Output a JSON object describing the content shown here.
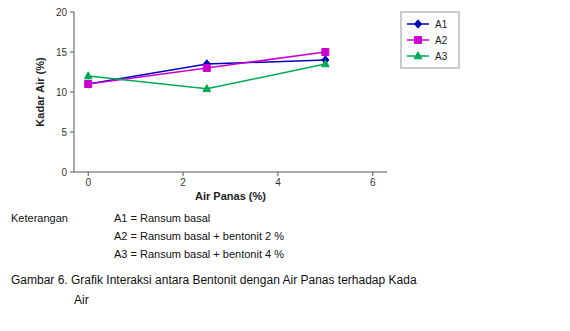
{
  "chart_data": {
    "type": "line",
    "x": [
      0,
      2.5,
      5
    ],
    "series": [
      {
        "name": "A1",
        "color": "#0000BB",
        "marker": "diamond",
        "values": [
          11.0,
          13.5,
          14.0
        ]
      },
      {
        "name": "A2",
        "color": "#CC00CC",
        "marker": "square",
        "values": [
          11.0,
          13.0,
          15.0
        ]
      },
      {
        "name": "A3",
        "color": "#00AA55",
        "marker": "triangle",
        "values": [
          12.0,
          10.4,
          13.5
        ]
      }
    ],
    "xlabel": "Air Panas (%)",
    "ylabel": "Kadar Air (%)",
    "xlim": [
      -0.3,
      6.3
    ],
    "ylim": [
      0,
      20
    ],
    "xticks": [
      0,
      2,
      4,
      6
    ],
    "yticks": [
      0,
      5,
      10,
      15,
      20
    ],
    "legend": "upper right",
    "grid": false,
    "annotations": [
      "Keterangan",
      "A1 = Ransum basal",
      "A2 = Ransum basal + bentonit 2 %",
      "A3 = Ransum basal + bentonit 4 %",
      "Gambar 6. Grafik Interaksi antara Bentonit dengan Air Panas terhadap Kada",
      "Air"
    ]
  }
}
